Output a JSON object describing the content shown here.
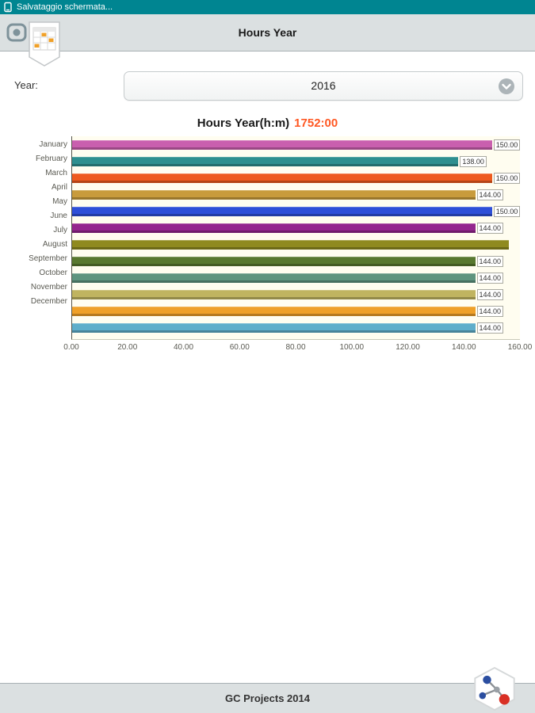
{
  "status_bar": {
    "text": "Salvataggio schermata..."
  },
  "header": {
    "title": "Hours Year"
  },
  "year_selector": {
    "label": "Year:",
    "value": "2016"
  },
  "chart_header": {
    "title": "Hours Year(h:m)",
    "total": "1752:00"
  },
  "chart_data": {
    "type": "bar",
    "orientation": "horizontal",
    "title": "Hours Year(h:m)",
    "total_hours_label": "1752:00",
    "categories": [
      "January",
      "February",
      "March",
      "April",
      "May",
      "June",
      "July",
      "August",
      "September",
      "October",
      "November",
      "December"
    ],
    "values": [
      150,
      138,
      150,
      144,
      150,
      144,
      156,
      144,
      144,
      144,
      144,
      144
    ],
    "value_labels": [
      "150.00",
      "138.00",
      "150.00",
      "144.00",
      "150.00",
      "144.00",
      "",
      "144.00",
      "144.00",
      "144.00",
      "144.00",
      "144.00"
    ],
    "colors": [
      "#C95FAE",
      "#2E8F8F",
      "#EE5A1E",
      "#C89B3C",
      "#2E4FD8",
      "#94258E",
      "#8F8A1F",
      "#58782F",
      "#5E947F",
      "#C0B460",
      "#EFA028",
      "#5FAECB"
    ],
    "xlim": [
      0,
      160
    ],
    "x_ticks": [
      "0.00",
      "20.00",
      "40.00",
      "60.00",
      "80.00",
      "100.00",
      "120.00",
      "140.00",
      "160.00"
    ],
    "plot_background": "#FFFDF0",
    "grid": false,
    "legend": false
  },
  "footer": {
    "text": "GC Projects 2014"
  },
  "icons": {
    "status": "screenshot-icon",
    "nav": "home-button-icon",
    "app": "calendar-icon",
    "dropdown": "chevron-down-icon",
    "logo": "molecule-logo-icon"
  },
  "colors": {
    "status_bar_bg": "#008591",
    "chrome_bg": "#DBE0E1",
    "chrome_border": "#A9B1B4",
    "accent_orange": "#FF5722",
    "text_primary": "#1A1A1A",
    "text_muted": "#5A5A52"
  }
}
